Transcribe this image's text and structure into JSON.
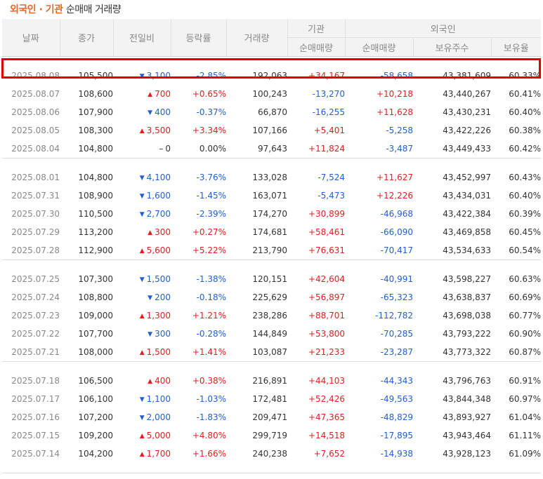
{
  "title": {
    "part1": "외국인",
    "dot": " · ",
    "part2": "기관",
    "part3": "순매매 거래량"
  },
  "headers": {
    "date": "날짜",
    "close": "종가",
    "change": "전일비",
    "rate": "등락률",
    "volume": "거래량",
    "inst_group": "기관",
    "inst_net": "순매매량",
    "foreign_group": "외국인",
    "foreign_net": "순매매량",
    "foreign_hold": "보유주수",
    "foreign_ratio": "보유율"
  },
  "colors": {
    "accent": "#e8662a",
    "up": "#e02020",
    "down": "#2060d0",
    "highlight": "#e00000"
  },
  "groups": [
    {
      "rows": [
        {
          "date": "2025.08.08",
          "close": "105,500",
          "dir": "down",
          "change": "3,100",
          "rate": "-2.85%",
          "volume": "192,063",
          "inst": "+34,167",
          "foreign": "-58,658",
          "hold": "43,381,609",
          "ratio": "60.33%"
        },
        {
          "date": "2025.08.07",
          "close": "108,600",
          "dir": "up",
          "change": "700",
          "rate": "+0.65%",
          "volume": "100,243",
          "inst": "-13,270",
          "foreign": "+10,218",
          "hold": "43,440,267",
          "ratio": "60.41%"
        },
        {
          "date": "2025.08.06",
          "close": "107,900",
          "dir": "down",
          "change": "400",
          "rate": "-0.37%",
          "volume": "66,870",
          "inst": "-16,255",
          "foreign": "+11,628",
          "hold": "43,430,231",
          "ratio": "60.40%"
        },
        {
          "date": "2025.08.05",
          "close": "108,300",
          "dir": "up",
          "change": "3,500",
          "rate": "+3.34%",
          "volume": "107,166",
          "inst": "+5,401",
          "foreign": "-5,258",
          "hold": "43,422,226",
          "ratio": "60.38%"
        },
        {
          "date": "2025.08.04",
          "close": "104,800",
          "dir": "flat",
          "change": "0",
          "rate": "0.00%",
          "volume": "97,643",
          "inst": "+11,824",
          "foreign": "-3,487",
          "hold": "43,449,433",
          "ratio": "60.42%"
        }
      ]
    },
    {
      "rows": [
        {
          "date": "2025.08.01",
          "close": "104,800",
          "dir": "down",
          "change": "4,100",
          "rate": "-3.76%",
          "volume": "133,028",
          "inst": "-7,524",
          "foreign": "+11,627",
          "hold": "43,452,997",
          "ratio": "60.43%"
        },
        {
          "date": "2025.07.31",
          "close": "108,900",
          "dir": "down",
          "change": "1,600",
          "rate": "-1.45%",
          "volume": "163,071",
          "inst": "-5,473",
          "foreign": "+12,226",
          "hold": "43,434,031",
          "ratio": "60.40%"
        },
        {
          "date": "2025.07.30",
          "close": "110,500",
          "dir": "down",
          "change": "2,700",
          "rate": "-2.39%",
          "volume": "174,270",
          "inst": "+30,899",
          "foreign": "-46,968",
          "hold": "43,422,384",
          "ratio": "60.39%"
        },
        {
          "date": "2025.07.29",
          "close": "113,200",
          "dir": "up",
          "change": "300",
          "rate": "+0.27%",
          "volume": "174,681",
          "inst": "+58,461",
          "foreign": "-66,090",
          "hold": "43,469,858",
          "ratio": "60.45%"
        },
        {
          "date": "2025.07.28",
          "close": "112,900",
          "dir": "up",
          "change": "5,600",
          "rate": "+5.22%",
          "volume": "213,790",
          "inst": "+76,631",
          "foreign": "-70,417",
          "hold": "43,534,633",
          "ratio": "60.54%"
        }
      ]
    },
    {
      "rows": [
        {
          "date": "2025.07.25",
          "close": "107,300",
          "dir": "down",
          "change": "1,500",
          "rate": "-1.38%",
          "volume": "120,151",
          "inst": "+42,604",
          "foreign": "-40,991",
          "hold": "43,598,227",
          "ratio": "60.63%"
        },
        {
          "date": "2025.07.24",
          "close": "108,800",
          "dir": "down",
          "change": "200",
          "rate": "-0.18%",
          "volume": "225,629",
          "inst": "+56,897",
          "foreign": "-65,323",
          "hold": "43,638,837",
          "ratio": "60.69%"
        },
        {
          "date": "2025.07.23",
          "close": "109,000",
          "dir": "up",
          "change": "1,300",
          "rate": "+1.21%",
          "volume": "238,286",
          "inst": "+88,701",
          "foreign": "-112,782",
          "hold": "43,698,038",
          "ratio": "60.77%"
        },
        {
          "date": "2025.07.22",
          "close": "107,700",
          "dir": "down",
          "change": "300",
          "rate": "-0.28%",
          "volume": "144,849",
          "inst": "+53,800",
          "foreign": "-70,285",
          "hold": "43,793,222",
          "ratio": "60.90%"
        },
        {
          "date": "2025.07.21",
          "close": "108,000",
          "dir": "up",
          "change": "1,500",
          "rate": "+1.41%",
          "volume": "103,087",
          "inst": "+21,233",
          "foreign": "-23,287",
          "hold": "43,773,322",
          "ratio": "60.87%"
        }
      ]
    },
    {
      "rows": [
        {
          "date": "2025.07.18",
          "close": "106,500",
          "dir": "up",
          "change": "400",
          "rate": "+0.38%",
          "volume": "216,891",
          "inst": "+44,103",
          "foreign": "-44,343",
          "hold": "43,796,763",
          "ratio": "60.91%"
        },
        {
          "date": "2025.07.17",
          "close": "106,100",
          "dir": "down",
          "change": "1,100",
          "rate": "-1.03%",
          "volume": "172,481",
          "inst": "+52,426",
          "foreign": "-49,563",
          "hold": "43,844,348",
          "ratio": "60.97%"
        },
        {
          "date": "2025.07.16",
          "close": "107,200",
          "dir": "down",
          "change": "2,000",
          "rate": "-1.83%",
          "volume": "209,471",
          "inst": "+47,365",
          "foreign": "-48,829",
          "hold": "43,893,927",
          "ratio": "61.04%"
        },
        {
          "date": "2025.07.15",
          "close": "109,200",
          "dir": "up",
          "change": "5,000",
          "rate": "+4.80%",
          "volume": "299,719",
          "inst": "+14,518",
          "foreign": "-17,895",
          "hold": "43,943,464",
          "ratio": "61.11%"
        },
        {
          "date": "2025.07.14",
          "close": "104,200",
          "dir": "up",
          "change": "1,700",
          "rate": "+1.66%",
          "volume": "240,238",
          "inst": "+7,652",
          "foreign": "-14,938",
          "hold": "43,928,123",
          "ratio": "61.09%"
        }
      ]
    }
  ]
}
